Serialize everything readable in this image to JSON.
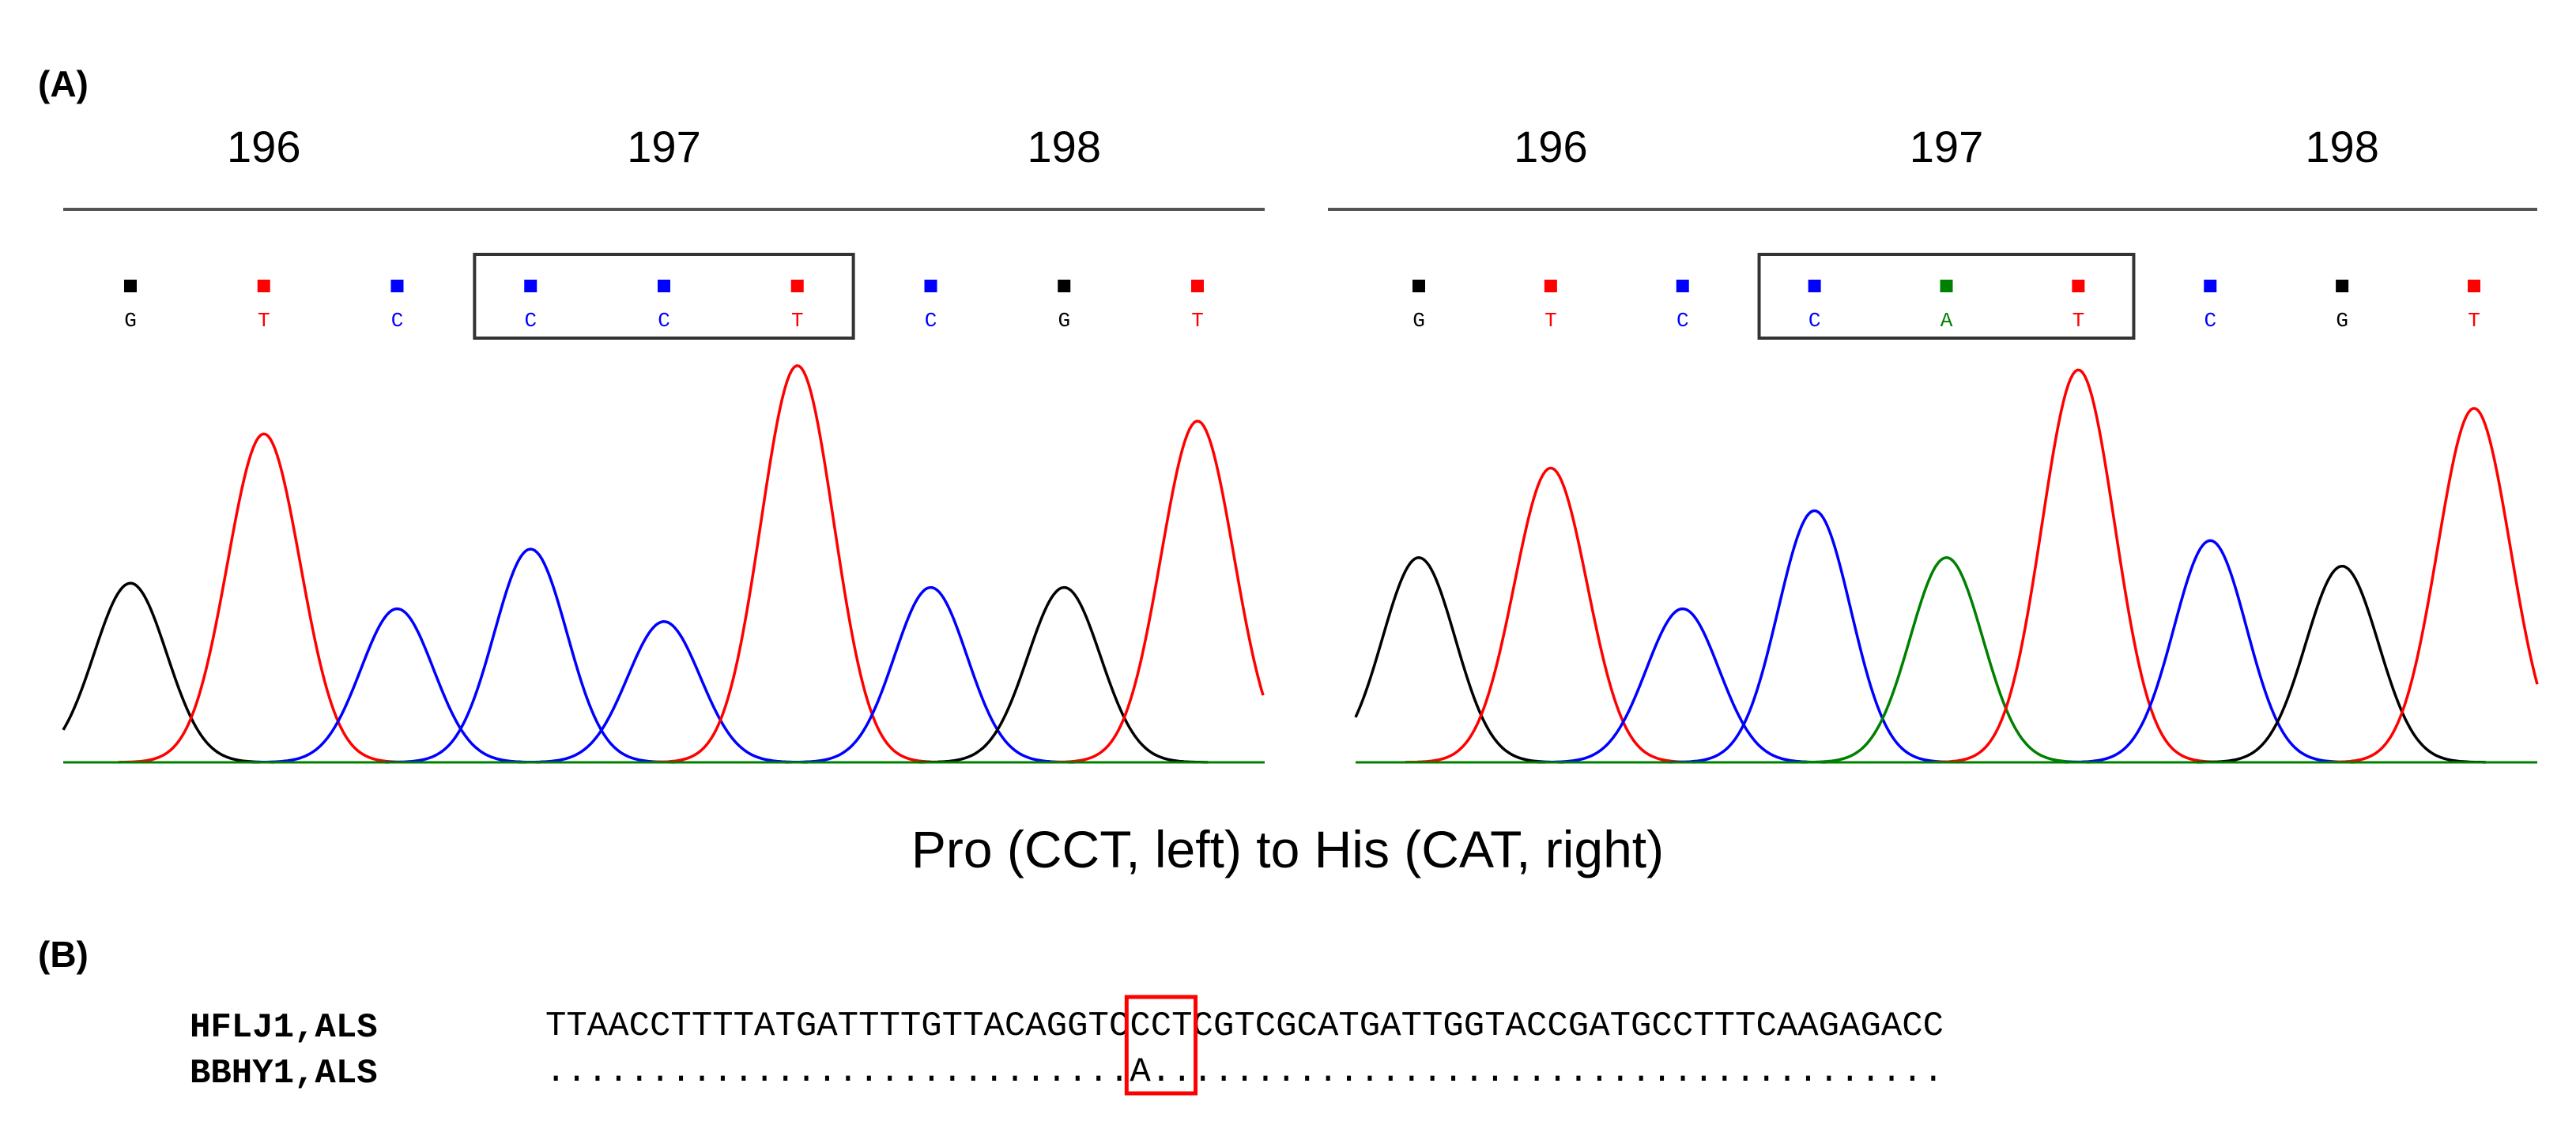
{
  "panel_a": {
    "label": "(A)",
    "caption": "Pro (CCT, left) to His (CAT, right)",
    "colors": {
      "G": "#000000",
      "T": "#ff0000",
      "C": "#0000ff",
      "A": "#008000",
      "box": "#333333",
      "baseline_green": "#008000"
    },
    "traces": [
      {
        "name": "left",
        "codons": [
          "196",
          "197",
          "198"
        ],
        "bases": [
          "G",
          "T",
          "C",
          "C",
          "C",
          "T",
          "C",
          "G",
          "T"
        ],
        "peak_heights": [
          0.42,
          0.77,
          0.36,
          0.5,
          0.33,
          0.93,
          0.41,
          0.41,
          0.8
        ],
        "highlight_range": [
          3,
          5
        ]
      },
      {
        "name": "right",
        "codons": [
          "196",
          "197",
          "198"
        ],
        "bases": [
          "G",
          "T",
          "C",
          "C",
          "A",
          "T",
          "C",
          "G",
          "T"
        ],
        "peak_heights": [
          0.48,
          0.69,
          0.36,
          0.59,
          0.48,
          0.92,
          0.52,
          0.46,
          0.83
        ],
        "highlight_range": [
          3,
          5
        ]
      }
    ]
  },
  "panel_b": {
    "label": "(B)",
    "rows": [
      {
        "name": "HFLJ1,ALS",
        "sequence": "TTAACCTTTTATGATTTTGTTACAGGTCCCTCGTCGCATGATTGGTACCGATGCCTTTCAAGAGACC"
      },
      {
        "name": "BBHY1,ALS",
        "sequence": "............................A......................................"
      }
    ],
    "highlight": {
      "start": 28,
      "length": 3,
      "color": "#ff0000"
    }
  }
}
